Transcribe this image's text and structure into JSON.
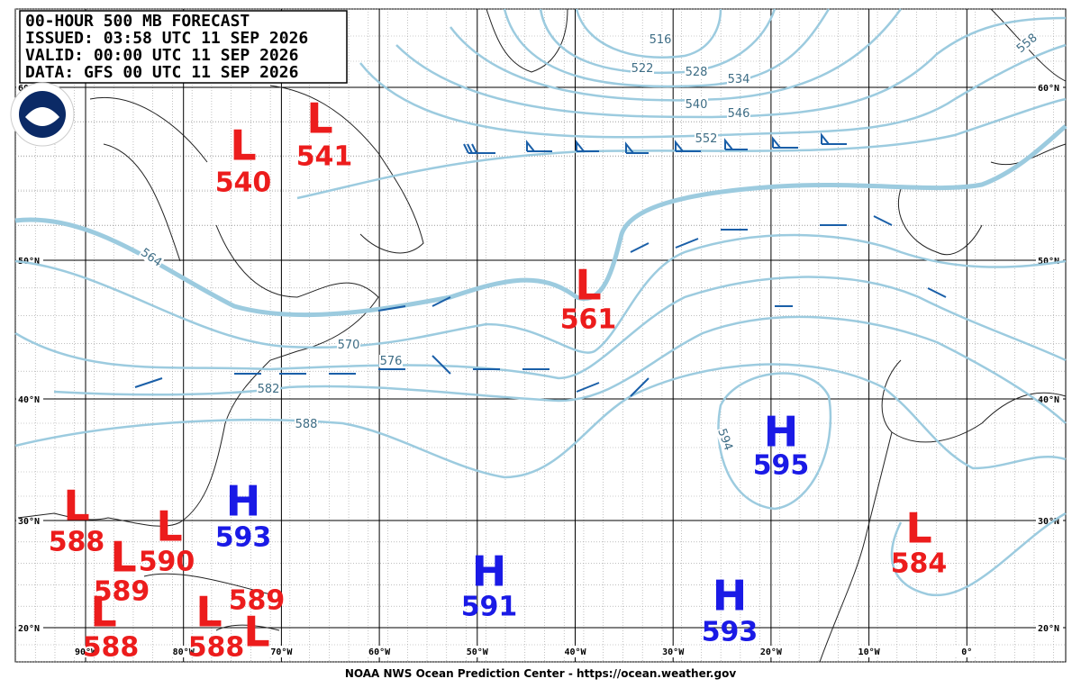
{
  "header": {
    "lines": [
      "00-HOUR 500 MB FORECAST",
      "ISSUED: 03:58 UTC 11 SEP 2026",
      "VALID:  00:00 UTC 11 SEP 2026",
      "DATA:  GFS 00 UTC 11 SEP 2026"
    ]
  },
  "lat_labels": [
    "60°N",
    "50°N",
    "40°N",
    "30°N",
    "20°N"
  ],
  "lon_labels": [
    "90°W",
    "80°W",
    "70°W",
    "60°W",
    "50°W",
    "40°W",
    "30°W",
    "20°W",
    "10°W",
    "0°"
  ],
  "contour_labels": [
    "516",
    "522",
    "528",
    "534",
    "540",
    "546",
    "552",
    "564",
    "570",
    "576",
    "582",
    "588",
    "594",
    "558"
  ],
  "centers": [
    {
      "type": "L",
      "value": "540"
    },
    {
      "type": "L",
      "value": "541"
    },
    {
      "type": "L",
      "value": "561"
    },
    {
      "type": "L",
      "value": "588"
    },
    {
      "type": "L",
      "value": "590"
    },
    {
      "type": "L",
      "value": "589"
    },
    {
      "type": "L",
      "value": "588"
    },
    {
      "type": "L",
      "value": "588"
    },
    {
      "type": "L",
      "value": "589"
    },
    {
      "type": "H",
      "value": "593"
    },
    {
      "type": "H",
      "value": "591"
    },
    {
      "type": "H",
      "value": "595"
    },
    {
      "type": "H",
      "value": "593"
    },
    {
      "type": "L",
      "value": "584"
    }
  ],
  "footer": "NOAA NWS Ocean Prediction Center - https://ocean.weather.gov"
}
